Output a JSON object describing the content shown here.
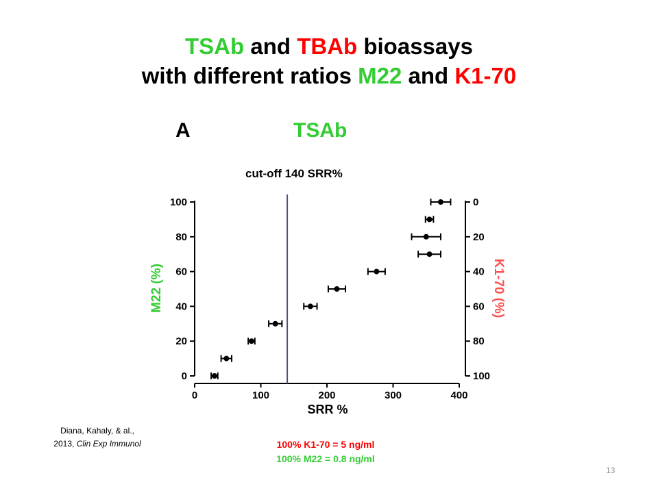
{
  "slide": {
    "title_parts": [
      {
        "text": "TSAb",
        "color": "green"
      },
      {
        "text": " and ",
        "color": "black"
      },
      {
        "text": "TBAb",
        "color": "red"
      },
      {
        "text": " bioassays",
        "color": "black"
      },
      {
        "text": "with different ratios ",
        "color": "black"
      },
      {
        "text": "M22",
        "color": "green"
      },
      {
        "text": " and ",
        "color": "black"
      },
      {
        "text": "K1-70",
        "color": "red"
      }
    ],
    "panel_letter": "A",
    "panel_title": "TSAb",
    "cutoff_label": "cut-off 140 SRR%",
    "citation": {
      "line1": "Diana, Kahaly, & al.,",
      "line2_prefix": "2013, ",
      "journal": "Clin Exp Immunol"
    },
    "notes": {
      "k170": "100% K1-70 = 5 ng/ml",
      "m22": "100% M22 = 0.8 ng/ml"
    },
    "page_number": "13"
  },
  "colors": {
    "green": "#33cc33",
    "red": "#ff0000",
    "black": "#000000",
    "cutoff": "#5a4a7a",
    "red_light": "#ff5050"
  },
  "chart_data": {
    "type": "scatter",
    "xlabel": "SRR %",
    "ylabel": "M22 (%)",
    "y2label": "K1-70 (%)",
    "xlim": [
      0,
      400
    ],
    "ylim": [
      0,
      100
    ],
    "x_ticks": [
      0,
      100,
      200,
      300,
      400
    ],
    "y_ticks": [
      0,
      20,
      40,
      60,
      80,
      100
    ],
    "y2_ticks": [
      0,
      20,
      40,
      60,
      80,
      100
    ],
    "y2_reversed": true,
    "grid": false,
    "cutoff_x": 140,
    "points": [
      {
        "y": 0,
        "x": 30,
        "err": 5
      },
      {
        "y": 10,
        "x": 48,
        "err": 8
      },
      {
        "y": 20,
        "x": 86,
        "err": 5
      },
      {
        "y": 30,
        "x": 122,
        "err": 10
      },
      {
        "y": 40,
        "x": 175,
        "err": 10
      },
      {
        "y": 50,
        "x": 215,
        "err": 13
      },
      {
        "y": 60,
        "x": 275,
        "err": 13
      },
      {
        "y": 70,
        "x": 355,
        "err": 17
      },
      {
        "y": 80,
        "x": 350,
        "err": 22
      },
      {
        "y": 90,
        "x": 355,
        "err": 6
      },
      {
        "y": 100,
        "x": 372,
        "err": 15
      }
    ]
  }
}
